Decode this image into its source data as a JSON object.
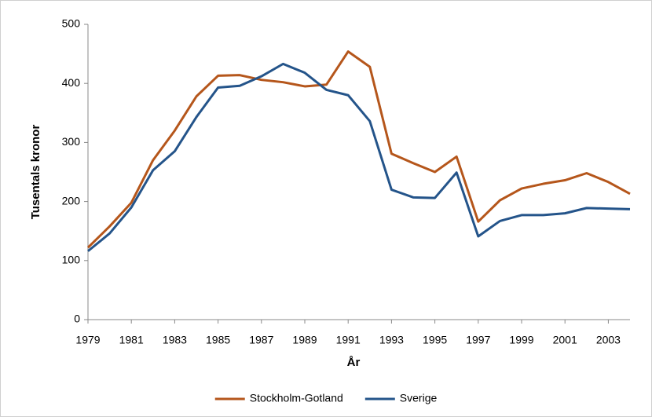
{
  "chart_data": {
    "type": "line",
    "x_label": "År",
    "y_label": "Tusentals kronor",
    "x": [
      1979,
      1980,
      1981,
      1982,
      1983,
      1984,
      1985,
      1986,
      1987,
      1988,
      1989,
      1990,
      1991,
      1992,
      1993,
      1994,
      1995,
      1996,
      1997,
      1998,
      1999,
      2000,
      2001,
      2002,
      2003,
      2004
    ],
    "series": [
      {
        "name": "Stockholm-Gotland",
        "color": "#b5561b",
        "values": [
          122,
          158,
          198,
          270,
          320,
          378,
          413,
          414,
          406,
          402,
          395,
          398,
          454,
          428,
          281,
          265,
          250,
          276,
          166,
          202,
          222,
          230,
          236,
          248,
          233,
          213
        ]
      },
      {
        "name": "Sverige",
        "color": "#24548a",
        "values": [
          116,
          146,
          190,
          253,
          285,
          343,
          393,
          396,
          412,
          433,
          418,
          389,
          380,
          336,
          220,
          207,
          206,
          249,
          141,
          167,
          177,
          177,
          180,
          189,
          188,
          187
        ]
      }
    ],
    "xlim": [
      1979,
      2004
    ],
    "xticks": [
      1979,
      1981,
      1983,
      1985,
      1987,
      1989,
      1991,
      1993,
      1995,
      1997,
      1999,
      2001,
      2003
    ],
    "ylim": [
      0,
      500
    ],
    "yticks": [
      0,
      100,
      200,
      300,
      400,
      500
    ],
    "grid": false,
    "legend": "bottom"
  }
}
